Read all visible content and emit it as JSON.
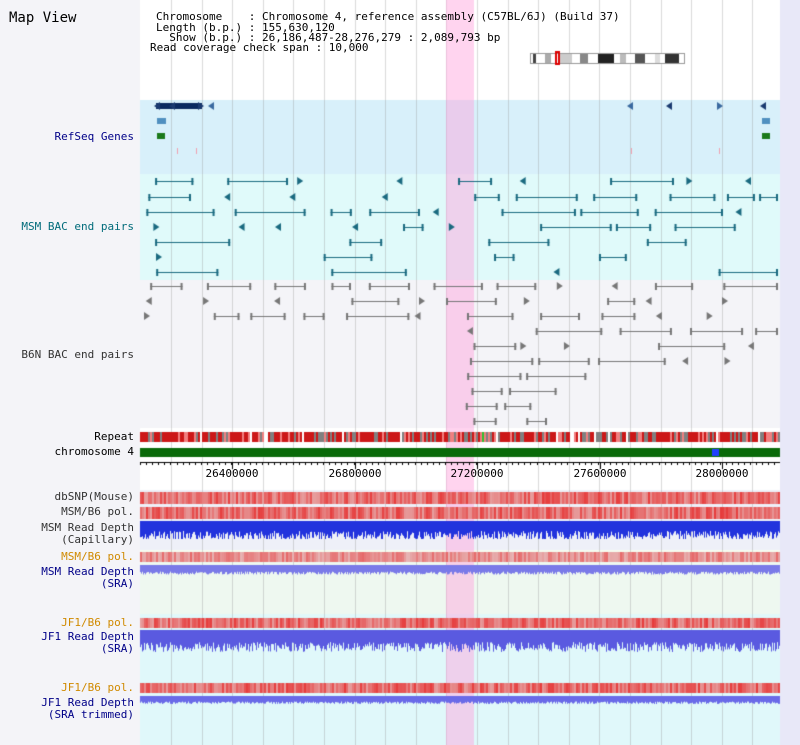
{
  "view_title": "Map View",
  "info": {
    "line1": "Chromosome    : Chromosome 4, reference assembly (C57BL/6J) (Build 37)",
    "line2": "Length (b.p.) : 155,630,120",
    "line3": "  Show (b.p.) : 26,186,487-28,276,279 : 2,089,793 bp",
    "line4": "Read coverage check span : 10,000"
  },
  "tracks": {
    "refseq": "RefSeq Genes",
    "msm_bac": "MSM BAC end pairs",
    "b6n_bac": "B6N BAC end pairs",
    "repeat": "Repeat",
    "chromosome": "chromosome 4",
    "dbsnp": "dbSNP(Mouse)",
    "msm_b6_pol": "MSM/B6 pol.",
    "msm_read_depth_cap_1": "MSM Read Depth",
    "msm_read_depth_cap_2": "(Capillary)",
    "msm_b6_pol_2": "MSM/B6 pol.",
    "msm_read_depth_sra_1": "MSM Read Depth",
    "msm_read_depth_sra_2": "(SRA)",
    "jf1_b6_pol": "JF1/B6 pol.",
    "jf1_read_depth_1": "JF1 Read Depth",
    "jf1_read_depth_2": "(SRA)",
    "jf1_b6_pol_2": "JF1/B6 pol.",
    "jf1_trim_1": "JF1 Read Depth",
    "jf1_trim_2": "(SRA trimmed)"
  },
  "axis_ticks": [
    "26400000",
    "26800000",
    "27200000",
    "27600000",
    "28000000"
  ],
  "colors": {
    "label_blue": "#000088",
    "label_teal": "#006b7a",
    "label_orange": "#d08a00",
    "label_gray": "#333333"
  }
}
